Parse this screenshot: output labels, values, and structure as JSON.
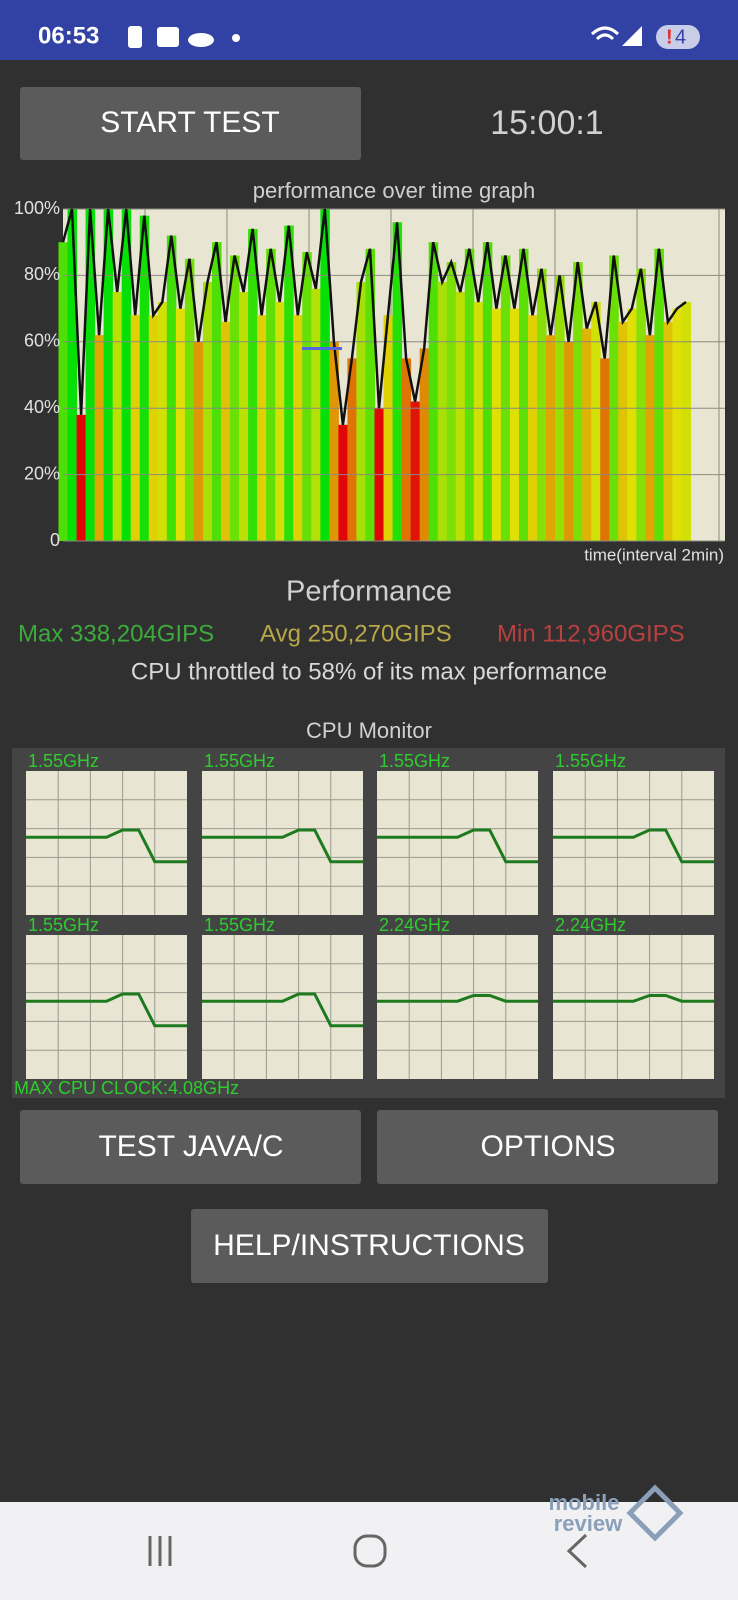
{
  "status_bar": {
    "time": "06:53",
    "battery_alert": "!",
    "battery": "4"
  },
  "start_button": "START TEST",
  "timer": "15:00:1",
  "chart_data": {
    "type": "line",
    "title": "performance over time graph",
    "x_label": "time(interval 2min)",
    "values": [
      90,
      100,
      38,
      100,
      62,
      100,
      75,
      100,
      68,
      98,
      68,
      72,
      92,
      70,
      85,
      60,
      78,
      90,
      66,
      86,
      75,
      94,
      68,
      88,
      72,
      95,
      68,
      87,
      76,
      100,
      60,
      35,
      55,
      78,
      88,
      40,
      68,
      96,
      55,
      42,
      58,
      90,
      78,
      84,
      75,
      88,
      72,
      90,
      70,
      86,
      70,
      88,
      68,
      82,
      62,
      80,
      60,
      84,
      64,
      72,
      55,
      86,
      66,
      70,
      82,
      62,
      88,
      66,
      70,
      72
    ],
    "color": "#111111",
    "ylim": [
      0,
      100
    ],
    "yticks": [
      0,
      {
        "value": 20,
        "label": "20%"
      },
      {
        "value": 40,
        "label": "40%"
      },
      {
        "value": 60,
        "label": "60%"
      },
      {
        "value": 80,
        "label": "80%"
      },
      {
        "value": 100,
        "label": "100%"
      }
    ],
    "grid": true,
    "throttle_marker": 58,
    "throttle_marker_color": "#5566dd"
  },
  "performance": {
    "title": "Performance",
    "max": "Max 338,204GIPS",
    "avg": "Avg 250,270GIPS",
    "min": "Min 112,960GIPS",
    "throttle_note": "CPU throttled to 58% of its max performance"
  },
  "cpu_monitor": {
    "title": "CPU Monitor",
    "color": "#1e7a1e",
    "cores": [
      {
        "label": "1.55GHz",
        "values": [
          54,
          54,
          54,
          54,
          54,
          54,
          59,
          59,
          37,
          37,
          37
        ]
      },
      {
        "label": "1.55GHz",
        "values": [
          54,
          54,
          54,
          54,
          54,
          54,
          59,
          59,
          37,
          37,
          37
        ]
      },
      {
        "label": "1.55GHz",
        "values": [
          54,
          54,
          54,
          54,
          54,
          54,
          59,
          59,
          37,
          37,
          37
        ]
      },
      {
        "label": "1.55GHz",
        "values": [
          54,
          54,
          54,
          54,
          54,
          54,
          59,
          59,
          37,
          37,
          37
        ]
      },
      {
        "label": "1.55GHz",
        "values": [
          54,
          54,
          54,
          54,
          54,
          54,
          59,
          59,
          37,
          37,
          37
        ]
      },
      {
        "label": "1.55GHz",
        "values": [
          54,
          54,
          54,
          54,
          54,
          54,
          59,
          59,
          37,
          37,
          37
        ]
      },
      {
        "label": "2.24GHz",
        "values": [
          54,
          54,
          54,
          54,
          54,
          54,
          58,
          58,
          54,
          54,
          54
        ]
      },
      {
        "label": "2.24GHz",
        "values": [
          54,
          54,
          54,
          54,
          54,
          54,
          58,
          58,
          54,
          54,
          54
        ]
      }
    ],
    "max_clock": "MAX CPU CLOCK:4.08GHz"
  },
  "buttons": {
    "test": "TEST JAVA/C",
    "options": "OPTIONS",
    "help": "HELP/INSTRUCTIONS"
  },
  "watermark": {
    "line1": "mobile",
    "line2": "review"
  }
}
